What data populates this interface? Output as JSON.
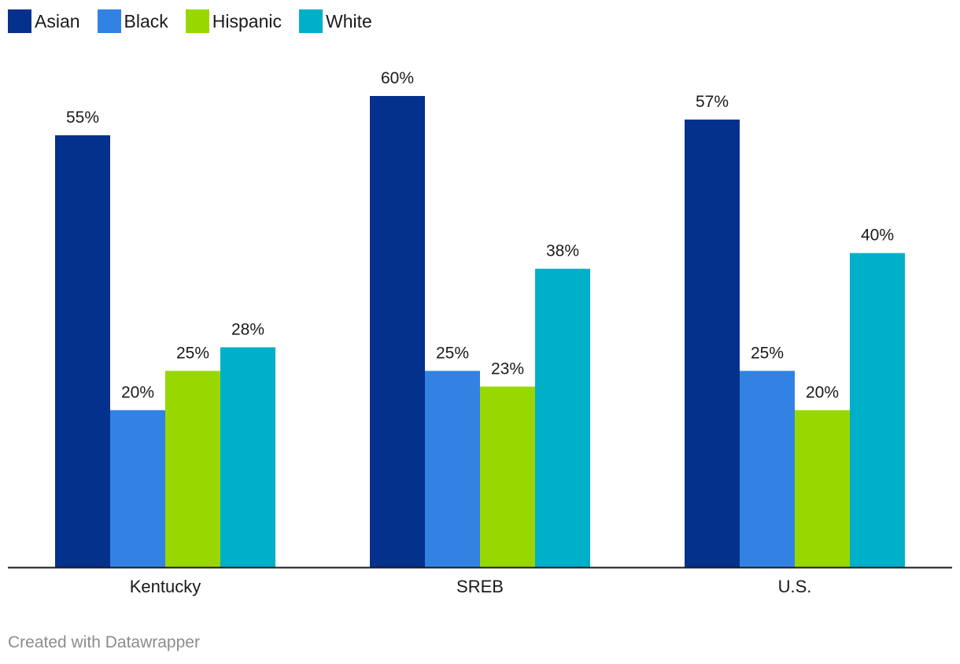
{
  "chart_data": {
    "type": "bar",
    "categories": [
      "Kentucky",
      "SREB",
      "U.S."
    ],
    "series": [
      {
        "name": "Asian",
        "color": "#03318c",
        "values": [
          55,
          60,
          57
        ],
        "labels": [
          "55%",
          "60%",
          "57%"
        ]
      },
      {
        "name": "Black",
        "color": "#3182e3",
        "values": [
          20,
          25,
          25
        ],
        "labels": [
          "20%",
          "25%",
          "25%"
        ]
      },
      {
        "name": "Hispanic",
        "color": "#98d800",
        "values": [
          25,
          23,
          20
        ],
        "labels": [
          "25%",
          "23%",
          "20%"
        ]
      },
      {
        "name": "White",
        "color": "#00afc8",
        "values": [
          28,
          38,
          40
        ],
        "labels": [
          "28%",
          "38%",
          "40%"
        ]
      }
    ],
    "ylim": [
      0,
      60
    ],
    "legend_position": "top-left",
    "grid": false
  },
  "footer": {
    "credit": "Created with Datawrapper"
  }
}
